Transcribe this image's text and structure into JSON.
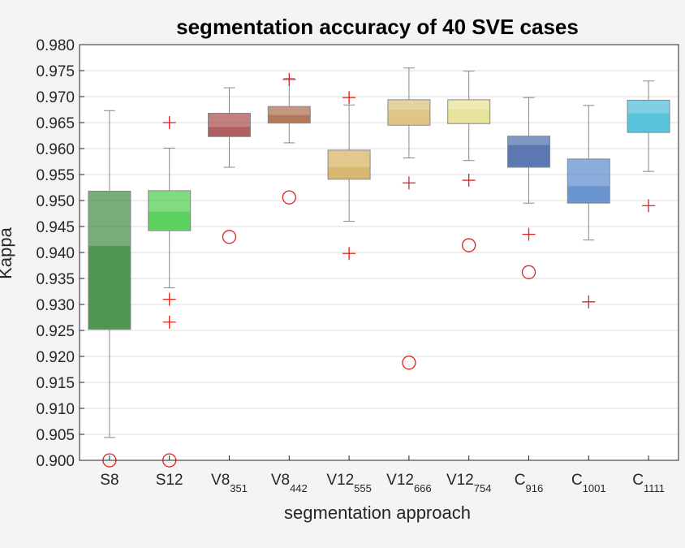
{
  "chart_data": {
    "type": "boxplot",
    "title": "segmentation accuracy of 40 SVE cases",
    "xlabel": "segmentation approach",
    "ylabel": "Kappa",
    "ylim": [
      0.9,
      0.98
    ],
    "yticks": [
      "0.900",
      "0.905",
      "0.910",
      "0.915",
      "0.920",
      "0.925",
      "0.930",
      "0.935",
      "0.940",
      "0.945",
      "0.950",
      "0.955",
      "0.960",
      "0.965",
      "0.970",
      "0.975",
      "0.980"
    ],
    "grid": true,
    "categories": [
      {
        "main": "S8",
        "sub": ""
      },
      {
        "main": "S12",
        "sub": ""
      },
      {
        "main": "V8",
        "sub": "351"
      },
      {
        "main": "V8",
        "sub": "442"
      },
      {
        "main": "V12",
        "sub": "555"
      },
      {
        "main": "V12",
        "sub": "666"
      },
      {
        "main": "V12",
        "sub": "754"
      },
      {
        "main": "C",
        "sub": "916"
      },
      {
        "main": "C",
        "sub": "1001"
      },
      {
        "main": "C",
        "sub": "1111"
      }
    ],
    "boxes": [
      {
        "q1": 0.9252,
        "median": 0.9413,
        "q3": 0.9518,
        "whisker_low": 0.9044,
        "whisker_high": 0.9673,
        "outliers_plus": [],
        "outliers_circle": [
          0.9
        ],
        "color": "#3d8a3d"
      },
      {
        "q1": 0.9442,
        "median": 0.9479,
        "q3": 0.9519,
        "whisker_low": 0.9332,
        "whisker_high": 0.9601,
        "outliers_plus": [
          0.965,
          0.931,
          0.9266
        ],
        "outliers_circle": [
          0.9
        ],
        "color": "#4ccd4c"
      },
      {
        "q1": 0.9623,
        "median": 0.9642,
        "q3": 0.9668,
        "whisker_low": 0.9564,
        "whisker_high": 0.9717,
        "outliers_plus": [],
        "outliers_circle": [
          0.943
        ],
        "color": "#a84c4c"
      },
      {
        "q1": 0.9649,
        "median": 0.9665,
        "q3": 0.9681,
        "whisker_low": 0.9611,
        "whisker_high": 0.9735,
        "outliers_plus": [
          0.9733
        ],
        "outliers_circle": [
          0.9506
        ],
        "color": "#a86a48"
      },
      {
        "q1": 0.9541,
        "median": 0.9565,
        "q3": 0.9597,
        "whisker_low": 0.946,
        "whisker_high": 0.9684,
        "outliers_plus": [
          0.9698,
          0.9398
        ],
        "outliers_circle": [],
        "color": "#d4b060"
      },
      {
        "q1": 0.9645,
        "median": 0.9675,
        "q3": 0.9694,
        "whisker_low": 0.9582,
        "whisker_high": 0.9755,
        "outliers_plus": [
          0.9534
        ],
        "outliers_circle": [
          0.9188
        ],
        "color": "#dcc07a"
      },
      {
        "q1": 0.9648,
        "median": 0.9675,
        "q3": 0.9694,
        "whisker_low": 0.9577,
        "whisker_high": 0.9749,
        "outliers_plus": [
          0.9539
        ],
        "outliers_circle": [
          0.9414
        ],
        "color": "#e6e090"
      },
      {
        "q1": 0.9564,
        "median": 0.9607,
        "q3": 0.9624,
        "whisker_low": 0.9495,
        "whisker_high": 0.9698,
        "outliers_plus": [
          0.9435
        ],
        "outliers_circle": [
          0.9362
        ],
        "color": "#4a6aaa"
      },
      {
        "q1": 0.9495,
        "median": 0.9528,
        "q3": 0.958,
        "whisker_low": 0.9424,
        "whisker_high": 0.9683,
        "outliers_plus": [
          0.9305
        ],
        "outliers_circle": [],
        "color": "#5a8acc"
      },
      {
        "q1": 0.9631,
        "median": 0.9668,
        "q3": 0.9693,
        "whisker_low": 0.9556,
        "whisker_high": 0.973,
        "outliers_plus": [
          0.949
        ],
        "outliers_circle": [],
        "color": "#48bcd8"
      }
    ]
  }
}
